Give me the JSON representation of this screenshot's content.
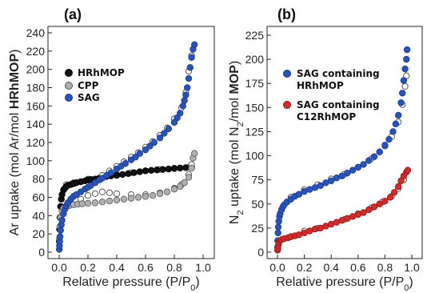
{
  "chart_data": [
    {
      "panel_label": "(a)",
      "type": "scatter",
      "xlabel_main": "Relative pressure (P/P",
      "xlabel_sub": "0",
      "xlabel_close": ")",
      "ylabel_main": "Ar uptake (mol Ar/mol ",
      "ylabel_bold": "HRhMOP",
      "ylabel_close": ")",
      "xlim": [
        0,
        1.0
      ],
      "ylim": [
        0,
        240
      ],
      "xticks": [
        "0.0",
        "0.2",
        "0.4",
        "0.6",
        "0.8",
        "1.0"
      ],
      "yticks": [
        "0",
        "20",
        "40",
        "60",
        "80",
        "100",
        "120",
        "140",
        "160",
        "180",
        "200",
        "220",
        "240"
      ],
      "legend_position": "upper-left",
      "series": [
        {
          "name": "HRhMOP",
          "color": "#111111",
          "adsorption": [
            [
              0.001,
              12
            ],
            [
              0.003,
              25
            ],
            [
              0.006,
              38
            ],
            [
              0.01,
              50
            ],
            [
              0.015,
              58
            ],
            [
              0.02,
              63
            ],
            [
              0.03,
              68
            ],
            [
              0.04,
              70
            ],
            [
              0.05,
              72
            ],
            [
              0.06,
              73
            ],
            [
              0.08,
              74
            ],
            [
              0.1,
              75
            ],
            [
              0.12,
              76
            ],
            [
              0.15,
              77
            ],
            [
              0.18,
              78
            ],
            [
              0.2,
              79
            ],
            [
              0.22,
              79.5
            ],
            [
              0.25,
              80
            ],
            [
              0.28,
              81
            ],
            [
              0.3,
              82
            ],
            [
              0.33,
              83
            ],
            [
              0.36,
              83.5
            ],
            [
              0.4,
              84
            ],
            [
              0.44,
              85
            ],
            [
              0.48,
              86
            ],
            [
              0.52,
              87
            ],
            [
              0.56,
              88
            ],
            [
              0.6,
              89
            ],
            [
              0.64,
              89.5
            ],
            [
              0.68,
              90
            ],
            [
              0.72,
              90.5
            ],
            [
              0.76,
              91
            ],
            [
              0.8,
              91.5
            ],
            [
              0.84,
              92
            ],
            [
              0.88,
              92.5
            ],
            [
              0.92,
              93
            ]
          ],
          "desorption": [
            [
              0.05,
              74
            ],
            [
              0.1,
              76
            ],
            [
              0.2,
              80
            ],
            [
              0.3,
              83
            ],
            [
              0.4,
              85
            ],
            [
              0.5,
              87
            ],
            [
              0.6,
              89
            ],
            [
              0.7,
              90.5
            ],
            [
              0.8,
              92
            ],
            [
              0.9,
              93
            ]
          ]
        },
        {
          "name": "CPP",
          "color": "#b0b0b0",
          "adsorption": [
            [
              0.002,
              15
            ],
            [
              0.005,
              28
            ],
            [
              0.01,
              38
            ],
            [
              0.02,
              45
            ],
            [
              0.03,
              48
            ],
            [
              0.05,
              50
            ],
            [
              0.07,
              51
            ],
            [
              0.1,
              52
            ],
            [
              0.13,
              52.5
            ],
            [
              0.16,
              53
            ],
            [
              0.2,
              53.5
            ],
            [
              0.25,
              54
            ],
            [
              0.3,
              55
            ],
            [
              0.35,
              56
            ],
            [
              0.4,
              57
            ],
            [
              0.45,
              58
            ],
            [
              0.5,
              59
            ],
            [
              0.55,
              60
            ],
            [
              0.6,
              61
            ],
            [
              0.65,
              62
            ],
            [
              0.7,
              64
            ],
            [
              0.75,
              66
            ],
            [
              0.8,
              69
            ],
            [
              0.84,
              72
            ],
            [
              0.87,
              76
            ],
            [
              0.9,
              82
            ],
            [
              0.92,
              92
            ],
            [
              0.93,
              103
            ],
            [
              0.94,
              108
            ]
          ],
          "desorption": [
            [
              0.15,
              58
            ],
            [
              0.2,
              62
            ],
            [
              0.25,
              64
            ],
            [
              0.3,
              66
            ],
            [
              0.35,
              65
            ],
            [
              0.4,
              64
            ],
            [
              0.5,
              63
            ],
            [
              0.6,
              63
            ],
            [
              0.7,
              65
            ],
            [
              0.8,
              70
            ],
            [
              0.85,
              74
            ],
            [
              0.9,
              85
            ],
            [
              0.92,
              96
            ]
          ]
        },
        {
          "name": "SAG",
          "color": "#2a53b8",
          "adsorption": [
            [
              0.001,
              3
            ],
            [
              0.002,
              7
            ],
            [
              0.004,
              12
            ],
            [
              0.006,
              17
            ],
            [
              0.01,
              24
            ],
            [
              0.015,
              30
            ],
            [
              0.02,
              35
            ],
            [
              0.03,
              42
            ],
            [
              0.04,
              47
            ],
            [
              0.05,
              51
            ],
            [
              0.06,
              54
            ],
            [
              0.08,
              58
            ],
            [
              0.1,
              61
            ],
            [
              0.12,
              63
            ],
            [
              0.15,
              66
            ],
            [
              0.18,
              69
            ],
            [
              0.2,
              71
            ],
            [
              0.22,
              73
            ],
            [
              0.25,
              76
            ],
            [
              0.28,
              79
            ],
            [
              0.3,
              81
            ],
            [
              0.33,
              84
            ],
            [
              0.36,
              87
            ],
            [
              0.4,
              91
            ],
            [
              0.43,
              94
            ],
            [
              0.46,
              97
            ],
            [
              0.5,
              101
            ],
            [
              0.53,
              104
            ],
            [
              0.56,
              108
            ],
            [
              0.6,
              112
            ],
            [
              0.63,
              116
            ],
            [
              0.66,
              120
            ],
            [
              0.7,
              125
            ],
            [
              0.73,
              130
            ],
            [
              0.76,
              135
            ],
            [
              0.8,
              142
            ],
            [
              0.82,
              147
            ],
            [
              0.84,
              152
            ],
            [
              0.86,
              160
            ],
            [
              0.87,
              166
            ],
            [
              0.88,
              172
            ],
            [
              0.89,
              180
            ],
            [
              0.9,
              190
            ],
            [
              0.91,
              202
            ],
            [
              0.92,
              213
            ],
            [
              0.93,
              222
            ],
            [
              0.94,
              227
            ]
          ],
          "desorption": [
            [
              0.3,
              84
            ],
            [
              0.35,
              89
            ],
            [
              0.4,
              94
            ],
            [
              0.45,
              99
            ],
            [
              0.5,
              104
            ],
            [
              0.55,
              109
            ],
            [
              0.6,
              115
            ],
            [
              0.65,
              121
            ],
            [
              0.7,
              128
            ],
            [
              0.75,
              136
            ],
            [
              0.8,
              146
            ],
            [
              0.85,
              158
            ],
            [
              0.88,
              175
            ],
            [
              0.9,
              198
            ],
            [
              0.92,
              215
            ]
          ]
        }
      ]
    },
    {
      "panel_label": "(b)",
      "type": "scatter",
      "xlabel_main": "Relative pressure (P/P",
      "xlabel_sub": "0",
      "xlabel_close": ")",
      "ylabel_main": "N",
      "ylabel_sub": "2",
      "ylabel_mid": " uptake (mol N",
      "ylabel_sub2": "2",
      "ylabel_mid2": "/mol ",
      "ylabel_bold": "MOP",
      "ylabel_close": ")",
      "xlim": [
        0,
        1.0
      ],
      "ylim": [
        0,
        225
      ],
      "xticks": [
        "0.0",
        "0.2",
        "0.4",
        "0.6",
        "0.8",
        "1.0"
      ],
      "yticks": [
        "0",
        "25",
        "50",
        "75",
        "100",
        "125",
        "150",
        "175",
        "200",
        "225"
      ],
      "legend_position": "upper-left",
      "series": [
        {
          "name_line1": "SAG containing",
          "name_line2": "HRhMOP",
          "color": "#2a53b8",
          "adsorption": [
            [
              0.001,
              5
            ],
            [
              0.002,
              12
            ],
            [
              0.004,
              20
            ],
            [
              0.006,
              26
            ],
            [
              0.01,
              32
            ],
            [
              0.015,
              37
            ],
            [
              0.02,
              40
            ],
            [
              0.03,
              44
            ],
            [
              0.04,
              47
            ],
            [
              0.05,
              49
            ],
            [
              0.07,
              52
            ],
            [
              0.1,
              55
            ],
            [
              0.13,
              58
            ],
            [
              0.16,
              60
            ],
            [
              0.2,
              63
            ],
            [
              0.24,
              65
            ],
            [
              0.28,
              67
            ],
            [
              0.32,
              69
            ],
            [
              0.36,
              72
            ],
            [
              0.4,
              74
            ],
            [
              0.44,
              77
            ],
            [
              0.48,
              79
            ],
            [
              0.52,
              82
            ],
            [
              0.56,
              85
            ],
            [
              0.6,
              88
            ],
            [
              0.64,
              91
            ],
            [
              0.68,
              95
            ],
            [
              0.72,
              99
            ],
            [
              0.76,
              104
            ],
            [
              0.8,
              111
            ],
            [
              0.83,
              117
            ],
            [
              0.86,
              125
            ],
            [
              0.88,
              133
            ],
            [
              0.9,
              142
            ],
            [
              0.92,
              155
            ],
            [
              0.93,
              165
            ],
            [
              0.94,
              178
            ],
            [
              0.95,
              190
            ],
            [
              0.96,
              200
            ],
            [
              0.965,
              210
            ]
          ],
          "desorption": [
            [
              0.1,
              57
            ],
            [
              0.2,
              65
            ],
            [
              0.3,
              70
            ],
            [
              0.4,
              76
            ],
            [
              0.5,
              81
            ],
            [
              0.6,
              88
            ],
            [
              0.7,
              97
            ],
            [
              0.8,
              110
            ],
            [
              0.85,
              120
            ],
            [
              0.9,
              135
            ],
            [
              0.93,
              153
            ],
            [
              0.95,
              172
            ],
            [
              0.96,
              183
            ]
          ]
        },
        {
          "name_line1": "SAG containing",
          "name_line2": "C12RhMOP",
          "color": "#d42a2a",
          "adsorption": [
            [
              0.001,
              2
            ],
            [
              0.003,
              4
            ],
            [
              0.006,
              7
            ],
            [
              0.01,
              10
            ],
            [
              0.02,
              12
            ],
            [
              0.03,
              13
            ],
            [
              0.05,
              14
            ],
            [
              0.08,
              15
            ],
            [
              0.1,
              16
            ],
            [
              0.13,
              17
            ],
            [
              0.16,
              18
            ],
            [
              0.2,
              20
            ],
            [
              0.24,
              22
            ],
            [
              0.28,
              24
            ],
            [
              0.32,
              25
            ],
            [
              0.36,
              27
            ],
            [
              0.4,
              29
            ],
            [
              0.44,
              31
            ],
            [
              0.48,
              33
            ],
            [
              0.52,
              35
            ],
            [
              0.56,
              37
            ],
            [
              0.6,
              39
            ],
            [
              0.64,
              41
            ],
            [
              0.68,
              44
            ],
            [
              0.72,
              47
            ],
            [
              0.76,
              50
            ],
            [
              0.8,
              53
            ],
            [
              0.84,
              57
            ],
            [
              0.87,
              62
            ],
            [
              0.9,
              68
            ],
            [
              0.92,
              74
            ],
            [
              0.94,
              79
            ],
            [
              0.96,
              83
            ],
            [
              0.97,
              85
            ]
          ],
          "desorption": [
            [
              0.2,
              22
            ],
            [
              0.3,
              25
            ],
            [
              0.4,
              29
            ],
            [
              0.5,
              34
            ],
            [
              0.6,
              40
            ],
            [
              0.7,
              46
            ],
            [
              0.78,
              52
            ],
            [
              0.85,
              58
            ],
            [
              0.9,
              66
            ],
            [
              0.94,
              75
            ]
          ]
        }
      ]
    }
  ]
}
